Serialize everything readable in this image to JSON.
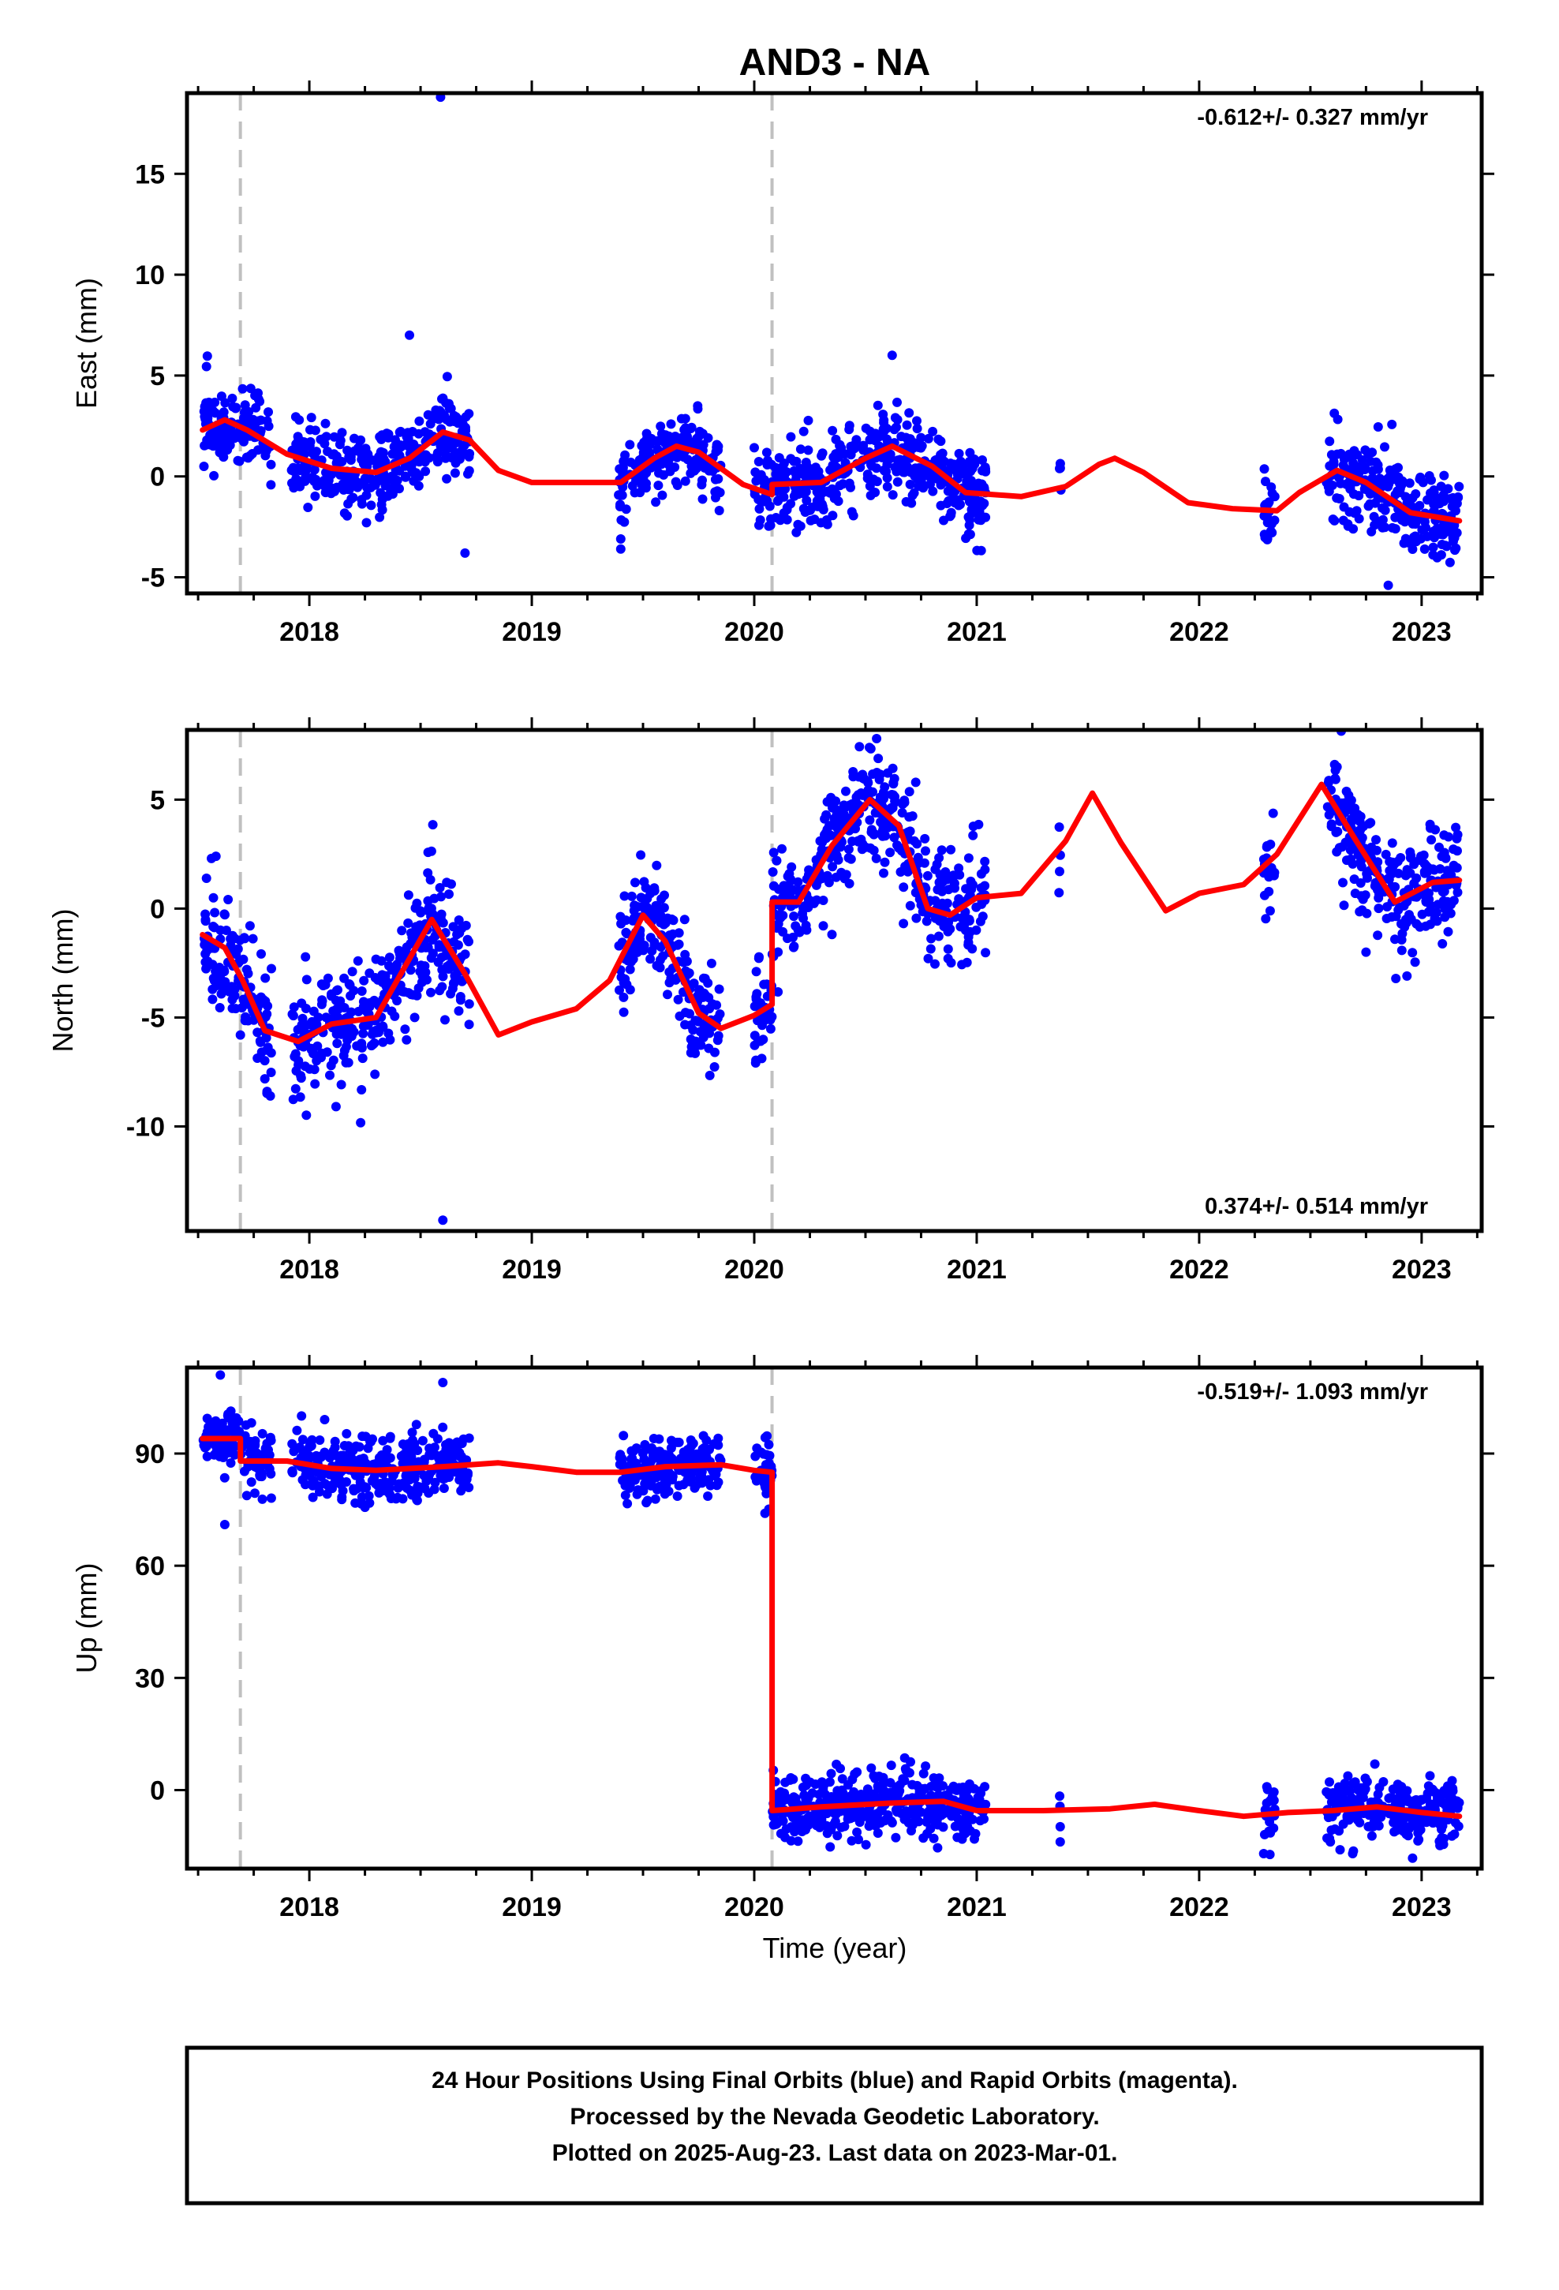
{
  "title": "AND3 - NA",
  "xlabel": "Time (year)",
  "colors": {
    "point": "#0000ff",
    "model": "#ff0000",
    "event": "#c0c0c0",
    "axis": "#000000"
  },
  "footer": {
    "line1": "24 Hour Positions Using Final Orbits (blue) and Rapid Orbits (magenta).",
    "line2": "Processed by the Nevada Geodetic Laboratory.",
    "line3": "Plotted on 2025-Aug-23. Last data on 2023-Mar-01."
  },
  "chart_data": [
    {
      "type": "scatter",
      "ylabel": "East (mm)",
      "rate": "-0.612+/- 0.327 mm/yr",
      "rate_position": "top-right",
      "xlim": [
        2017.45,
        2023.27
      ],
      "ylim": [
        -5.8,
        19.0
      ],
      "xticks": [
        2018,
        2019,
        2020,
        2021,
        2022,
        2023
      ],
      "yticks": [
        -5,
        0,
        5,
        10,
        15
      ],
      "event_lines": [
        2017.69,
        2020.08
      ],
      "data_segments": [
        [
          2017.52,
          2017.83
        ],
        [
          2017.92,
          2018.72
        ],
        [
          2019.39,
          2019.85
        ],
        [
          2020.0,
          2021.04
        ],
        [
          2021.37,
          2021.38
        ],
        [
          2022.29,
          2022.34
        ],
        [
          2022.57,
          2023.17
        ]
      ],
      "outliers": [
        [
          2018.59,
          18.8
        ],
        [
          2018.7,
          -3.8
        ],
        [
          2019.4,
          -3.6
        ],
        [
          2019.4,
          -3.1
        ],
        [
          2022.85,
          -5.4
        ],
        [
          2020.62,
          6.0
        ],
        [
          2018.45,
          7.0
        ]
      ],
      "scatter_seed": 11,
      "scatter_spread": 1.0,
      "model_line": [
        [
          2017.52,
          2.3
        ],
        [
          2017.62,
          2.8
        ],
        [
          2017.72,
          2.3
        ],
        [
          2017.9,
          1.1
        ],
        [
          2018.1,
          0.4
        ],
        [
          2018.3,
          0.2
        ],
        [
          2018.45,
          0.9
        ],
        [
          2018.6,
          2.2
        ],
        [
          2018.72,
          1.8
        ],
        [
          2018.85,
          0.3
        ],
        [
          2019.0,
          -0.3
        ],
        [
          2019.2,
          -0.3
        ],
        [
          2019.4,
          -0.3
        ],
        [
          2019.55,
          0.9
        ],
        [
          2019.65,
          1.5
        ],
        [
          2019.75,
          1.2
        ],
        [
          2019.95,
          -0.4
        ],
        [
          2020.08,
          -0.9
        ],
        [
          2020.08,
          -0.4
        ],
        [
          2020.3,
          -0.3
        ],
        [
          2020.5,
          0.9
        ],
        [
          2020.62,
          1.5
        ],
        [
          2020.8,
          0.5
        ],
        [
          2020.95,
          -0.8
        ],
        [
          2021.2,
          -1.0
        ],
        [
          2021.4,
          -0.5
        ],
        [
          2021.55,
          0.6
        ],
        [
          2021.62,
          0.9
        ],
        [
          2021.75,
          0.2
        ],
        [
          2021.95,
          -1.3
        ],
        [
          2022.15,
          -1.6
        ],
        [
          2022.35,
          -1.7
        ],
        [
          2022.45,
          -0.8
        ],
        [
          2022.62,
          0.3
        ],
        [
          2022.75,
          -0.3
        ],
        [
          2022.95,
          -1.8
        ],
        [
          2023.17,
          -2.2
        ]
      ]
    },
    {
      "type": "scatter",
      "ylabel": "North (mm)",
      "rate": "0.374+/- 0.514 mm/yr",
      "rate_position": "bottom-right",
      "xlim": [
        2017.45,
        2023.27
      ],
      "ylim": [
        -14.8,
        8.2
      ],
      "xticks": [
        2018,
        2019,
        2020,
        2021,
        2022,
        2023
      ],
      "yticks": [
        -10,
        -5,
        0,
        5
      ],
      "event_lines": [
        2017.69,
        2020.08
      ],
      "data_segments": [
        [
          2017.52,
          2017.83
        ],
        [
          2017.92,
          2018.72
        ],
        [
          2019.39,
          2019.85
        ],
        [
          2020.0,
          2021.04
        ],
        [
          2021.37,
          2021.38
        ],
        [
          2022.29,
          2022.34
        ],
        [
          2022.57,
          2023.17
        ]
      ],
      "outliers": [
        [
          2018.6,
          -14.3
        ],
        [
          2017.58,
          2.4
        ],
        [
          2017.56,
          2.3
        ],
        [
          2020.55,
          7.8
        ],
        [
          2022.62,
          6.5
        ],
        [
          2022.75,
          -2.0
        ]
      ],
      "scatter_seed": 23,
      "scatter_spread": 1.3,
      "model_line": [
        [
          2017.52,
          -1.2
        ],
        [
          2017.62,
          -1.8
        ],
        [
          2017.7,
          -3.3
        ],
        [
          2017.8,
          -5.6
        ],
        [
          2017.95,
          -6.1
        ],
        [
          2018.1,
          -5.3
        ],
        [
          2018.3,
          -5.0
        ],
        [
          2018.45,
          -2.3
        ],
        [
          2018.55,
          -0.5
        ],
        [
          2018.7,
          -3.0
        ],
        [
          2018.85,
          -5.8
        ],
        [
          2019.0,
          -5.2
        ],
        [
          2019.2,
          -4.6
        ],
        [
          2019.35,
          -3.3
        ],
        [
          2019.5,
          -0.3
        ],
        [
          2019.6,
          -1.5
        ],
        [
          2019.75,
          -4.8
        ],
        [
          2019.85,
          -5.5
        ],
        [
          2020.0,
          -4.9
        ],
        [
          2020.08,
          -4.4
        ],
        [
          2020.08,
          0.3
        ],
        [
          2020.2,
          0.3
        ],
        [
          2020.35,
          2.9
        ],
        [
          2020.52,
          5.0
        ],
        [
          2020.65,
          3.8
        ],
        [
          2020.78,
          0.0
        ],
        [
          2020.88,
          -0.3
        ],
        [
          2021.0,
          0.5
        ],
        [
          2021.2,
          0.7
        ],
        [
          2021.4,
          3.1
        ],
        [
          2021.52,
          5.3
        ],
        [
          2021.65,
          3.0
        ],
        [
          2021.85,
          -0.1
        ],
        [
          2022.0,
          0.7
        ],
        [
          2022.2,
          1.1
        ],
        [
          2022.35,
          2.5
        ],
        [
          2022.55,
          5.7
        ],
        [
          2022.7,
          3.2
        ],
        [
          2022.88,
          0.3
        ],
        [
          2023.05,
          1.2
        ],
        [
          2023.17,
          1.3
        ]
      ]
    },
    {
      "type": "scatter",
      "ylabel": "Up (mm)",
      "rate": "-0.519+/- 1.093 mm/yr",
      "rate_position": "top-right",
      "xlim": [
        2017.45,
        2023.27
      ],
      "ylim": [
        -21.0,
        113.0
      ],
      "xticks": [
        2018,
        2019,
        2020,
        2021,
        2022,
        2023
      ],
      "yticks": [
        0,
        30,
        60,
        90
      ],
      "event_lines": [
        2017.69,
        2020.08
      ],
      "data_segments": [
        [
          2017.52,
          2017.83
        ],
        [
          2017.92,
          2018.72
        ],
        [
          2019.39,
          2019.85
        ],
        [
          2020.0,
          2021.04
        ],
        [
          2021.37,
          2021.38
        ],
        [
          2022.29,
          2022.34
        ],
        [
          2022.57,
          2023.17
        ]
      ],
      "outliers": [
        [
          2017.6,
          111.0
        ],
        [
          2017.62,
          71.0
        ],
        [
          2018.6,
          109.0
        ],
        [
          2022.29,
          -17.0
        ],
        [
          2022.69,
          -17.0
        ],
        [
          2020.12,
          -6.0
        ]
      ],
      "scatter_seed": 37,
      "scatter_spread": 4.2,
      "model_line": [
        [
          2017.52,
          94.0
        ],
        [
          2017.69,
          94.0
        ],
        [
          2017.69,
          88.0
        ],
        [
          2017.9,
          88.0
        ],
        [
          2018.1,
          86.0
        ],
        [
          2018.3,
          85.5
        ],
        [
          2018.6,
          86.5
        ],
        [
          2018.85,
          87.5
        ],
        [
          2019.0,
          86.5
        ],
        [
          2019.2,
          85.0
        ],
        [
          2019.4,
          85.0
        ],
        [
          2019.6,
          86.5
        ],
        [
          2019.85,
          87.0
        ],
        [
          2020.0,
          85.5
        ],
        [
          2020.08,
          85.0
        ],
        [
          2020.08,
          -5.5
        ],
        [
          2020.3,
          -4.5
        ],
        [
          2020.6,
          -3.5
        ],
        [
          2020.85,
          -3.0
        ],
        [
          2021.0,
          -5.5
        ],
        [
          2021.3,
          -5.5
        ],
        [
          2021.6,
          -5.0
        ],
        [
          2021.8,
          -3.8
        ],
        [
          2022.0,
          -5.5
        ],
        [
          2022.2,
          -7.0
        ],
        [
          2022.4,
          -6.0
        ],
        [
          2022.6,
          -5.5
        ],
        [
          2022.8,
          -4.5
        ],
        [
          2023.0,
          -6.0
        ],
        [
          2023.17,
          -7.0
        ]
      ]
    }
  ]
}
